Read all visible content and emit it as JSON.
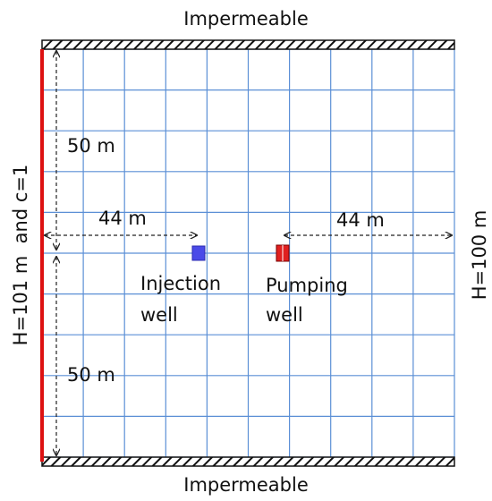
{
  "top_label": "Impermeable",
  "bottom_label": "Impermeable",
  "left_boundary": "H=101 m  and c=1",
  "right_boundary": "H=100 m",
  "dimensions": [
    "50 m",
    "50 m",
    "44 m",
    "44 m"
  ],
  "wells": [
    {
      "lines": [
        "Injection",
        "well"
      ]
    },
    {
      "lines": [
        "Pumping",
        "well"
      ]
    }
  ]
}
